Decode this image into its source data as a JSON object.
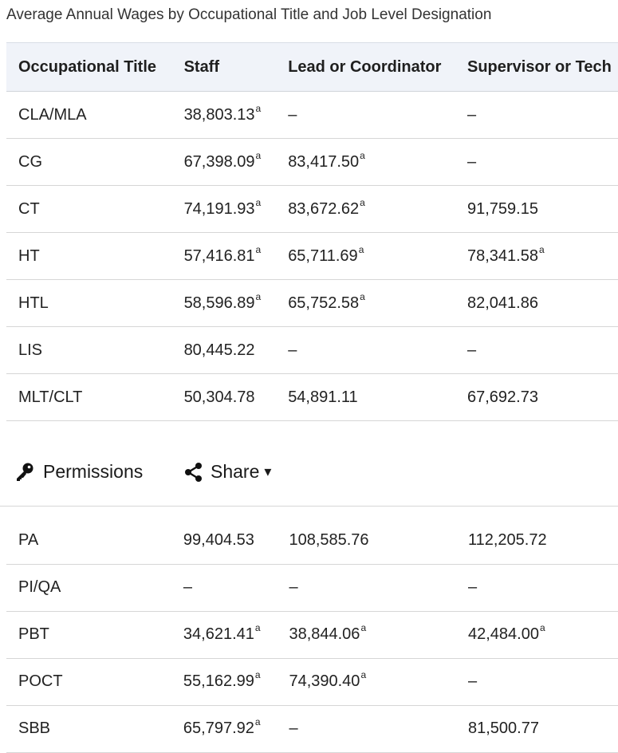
{
  "table": {
    "caption": "Average Annual Wages by Occupational Title and Job Level Designation",
    "headers": [
      "Occupational Title",
      "Staff",
      "Lead or Coordinator",
      "Supervisor or Tech"
    ],
    "rows_top": [
      [
        {
          "v": "CLA/MLA"
        },
        {
          "v": "38,803.13",
          "sup": "a"
        },
        {
          "v": "–"
        },
        {
          "v": "–"
        }
      ],
      [
        {
          "v": "CG"
        },
        {
          "v": "67,398.09",
          "sup": "a"
        },
        {
          "v": "83,417.50",
          "sup": "a"
        },
        {
          "v": "–"
        }
      ],
      [
        {
          "v": "CT"
        },
        {
          "v": "74,191.93",
          "sup": "a"
        },
        {
          "v": "83,672.62",
          "sup": "a"
        },
        {
          "v": "91,759.15"
        }
      ],
      [
        {
          "v": "HT"
        },
        {
          "v": "57,416.81",
          "sup": "a"
        },
        {
          "v": "65,711.69",
          "sup": "a"
        },
        {
          "v": "78,341.58",
          "sup": "a"
        }
      ],
      [
        {
          "v": "HTL"
        },
        {
          "v": "58,596.89",
          "sup": "a"
        },
        {
          "v": "65,752.58",
          "sup": "a"
        },
        {
          "v": "82,041.86"
        }
      ],
      [
        {
          "v": "LIS"
        },
        {
          "v": "80,445.22"
        },
        {
          "v": "–"
        },
        {
          "v": "–"
        }
      ],
      [
        {
          "v": "MLT/CLT"
        },
        {
          "v": "50,304.78"
        },
        {
          "v": "54,891.11"
        },
        {
          "v": "67,692.73"
        }
      ]
    ],
    "rows_bottom": [
      [
        {
          "v": "PA"
        },
        {
          "v": "99,404.53"
        },
        {
          "v": "108,585.76"
        },
        {
          "v": "112,205.72"
        }
      ],
      [
        {
          "v": "PI/QA"
        },
        {
          "v": "–"
        },
        {
          "v": "–"
        },
        {
          "v": "–"
        }
      ],
      [
        {
          "v": "PBT"
        },
        {
          "v": "34,621.41",
          "sup": "a"
        },
        {
          "v": "38,844.06",
          "sup": "a"
        },
        {
          "v": "42,484.00",
          "sup": "a"
        }
      ],
      [
        {
          "v": "POCT"
        },
        {
          "v": "55,162.99",
          "sup": "a"
        },
        {
          "v": "74,390.40",
          "sup": "a"
        },
        {
          "v": "–"
        }
      ],
      [
        {
          "v": "SBB"
        },
        {
          "v": "65,797.92",
          "sup": "a"
        },
        {
          "v": "–"
        },
        {
          "v": "81,500.77"
        }
      ]
    ]
  },
  "toolbar": {
    "permissions_label": "Permissions",
    "permissions_icon": "key-icon",
    "share_label": "Share",
    "share_icon": "share-icon",
    "share_caret": "▾"
  }
}
